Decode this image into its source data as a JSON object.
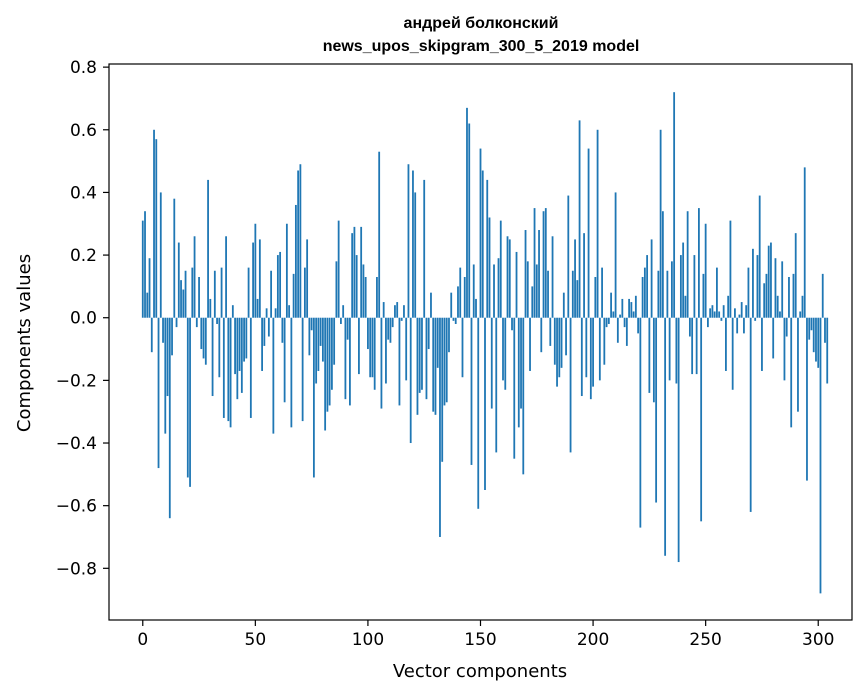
{
  "chart_data": {
    "type": "bar",
    "title": "андрей болконский",
    "subtitle": "news_upos_skipgram_300_5_2019 model",
    "xlabel": "Vector components",
    "ylabel": "Components values",
    "xlim": [
      -15,
      315
    ],
    "ylim": [
      -0.965,
      0.81
    ],
    "xticks": [
      0,
      50,
      100,
      150,
      200,
      250,
      300
    ],
    "yticks": [
      -0.8,
      -0.6,
      -0.4,
      -0.2,
      0.0,
      0.2,
      0.4,
      0.6,
      0.8
    ],
    "ytick_labels": [
      "−0.8",
      "−0.6",
      "−0.4",
      "−0.2",
      "0.0",
      "0.2",
      "0.4",
      "0.6",
      "0.8"
    ],
    "xtick_labels": [
      "0",
      "50",
      "100",
      "150",
      "200",
      "250",
      "300"
    ],
    "bar_color": "#1f77b4",
    "grid": false,
    "values": [
      0.31,
      0.34,
      0.08,
      0.19,
      -0.11,
      0.6,
      0.57,
      -0.48,
      0.4,
      -0.08,
      -0.37,
      -0.25,
      -0.64,
      -0.12,
      0.38,
      -0.03,
      0.24,
      0.12,
      0.09,
      0.15,
      -0.51,
      -0.54,
      0.16,
      0.26,
      -0.03,
      0.13,
      -0.1,
      -0.13,
      -0.15,
      0.44,
      0.06,
      -0.25,
      0.15,
      -0.02,
      -0.19,
      0.16,
      -0.32,
      0.26,
      -0.33,
      -0.35,
      0.04,
      -0.18,
      -0.26,
      -0.17,
      -0.24,
      -0.14,
      -0.13,
      0.16,
      -0.32,
      0.24,
      0.3,
      0.06,
      0.25,
      -0.17,
      -0.09,
      0.03,
      -0.06,
      0.15,
      -0.37,
      0.03,
      0.2,
      0.21,
      -0.08,
      -0.27,
      0.3,
      0.04,
      -0.35,
      0.14,
      0.36,
      0.47,
      0.49,
      -0.33,
      0.16,
      0.25,
      -0.12,
      -0.04,
      -0.51,
      -0.21,
      -0.17,
      -0.09,
      -0.14,
      -0.36,
      -0.3,
      -0.28,
      -0.23,
      -0.15,
      0.18,
      0.31,
      -0.02,
      0.04,
      -0.26,
      -0.07,
      -0.28,
      0.27,
      0.29,
      0.2,
      -0.18,
      0.29,
      0.17,
      0.13,
      -0.1,
      -0.19,
      -0.19,
      -0.23,
      0.13,
      0.53,
      -0.29,
      0.05,
      -0.21,
      -0.07,
      -0.08,
      -0.03,
      0.04,
      0.05,
      -0.28,
      -0.01,
      0.04,
      -0.2,
      0.49,
      -0.4,
      0.47,
      0.4,
      -0.31,
      -0.24,
      -0.23,
      0.44,
      -0.26,
      -0.1,
      0.08,
      -0.3,
      -0.31,
      -0.16,
      -0.7,
      -0.46,
      -0.28,
      -0.27,
      -0.11,
      0.08,
      -0.01,
      -0.02,
      0.1,
      0.16,
      -0.19,
      0.13,
      0.67,
      0.62,
      -0.47,
      0.17,
      0.06,
      -0.61,
      0.54,
      0.47,
      -0.55,
      0.44,
      0.32,
      -0.29,
      0.17,
      -0.43,
      0.19,
      0.31,
      -0.2,
      -0.23,
      0.26,
      0.25,
      -0.04,
      -0.45,
      0.21,
      -0.35,
      -0.29,
      -0.5,
      0.28,
      0.18,
      -0.17,
      0.1,
      0.35,
      0.17,
      0.28,
      -0.11,
      0.34,
      0.35,
      0.15,
      -0.09,
      0.26,
      -0.15,
      -0.22,
      -0.19,
      -0.16,
      0.08,
      -0.12,
      0.39,
      -0.43,
      0.15,
      0.25,
      0.12,
      0.63,
      -0.25,
      0.27,
      -0.19,
      0.54,
      -0.26,
      -0.22,
      0.13,
      0.6,
      -0.2,
      0.16,
      -0.15,
      -0.03,
      -0.02,
      0.08,
      0.02,
      0.4,
      -0.08,
      0.01,
      0.06,
      -0.03,
      -0.09,
      0.06,
      0.05,
      0.02,
      0.07,
      -0.05,
      -0.67,
      0.13,
      0.16,
      0.2,
      -0.24,
      0.25,
      -0.27,
      -0.59,
      0.15,
      0.6,
      0.34,
      -0.76,
      0.15,
      -0.2,
      0.18,
      0.72,
      -0.21,
      -0.78,
      0.2,
      0.24,
      0.07,
      0.34,
      -0.06,
      -0.18,
      0.2,
      -0.18,
      0.35,
      -0.65,
      0.14,
      0.3,
      -0.03,
      0.03,
      0.04,
      0.02,
      0.16,
      0.02,
      -0.01,
      0.04,
      -0.17,
      0.07,
      0.31,
      -0.23,
      0.03,
      -0.05,
      0.01,
      0.05,
      -0.05,
      0.04,
      0.16,
      -0.62,
      0.22,
      -0.01,
      0.2,
      0.39,
      -0.17,
      0.11,
      0.14,
      0.23,
      0.24,
      -0.13,
      0.19,
      0.07,
      0.02,
      0.18,
      -0.2,
      -0.06,
      0.13,
      -0.35,
      0.14,
      0.27,
      -0.3,
      0.02,
      0.07,
      0.48,
      -0.52,
      -0.07,
      -0.04,
      -0.11,
      -0.14,
      -0.16,
      -0.88,
      0.14,
      -0.08,
      -0.21
    ]
  }
}
